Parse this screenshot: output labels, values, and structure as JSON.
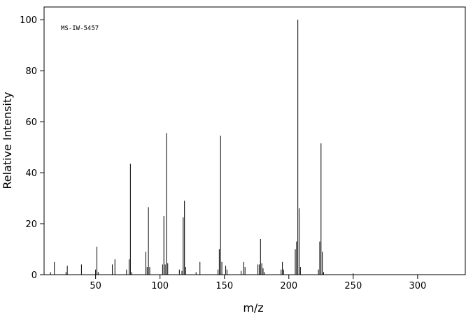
{
  "chart_data": {
    "type": "stem",
    "annotation": "MS-IW-5457",
    "x_label": "m/z",
    "y_label": "Relative Intensity",
    "color": "#000000",
    "xlim": [
      10,
      337
    ],
    "ylim": [
      0,
      105
    ],
    "xticks": [
      50,
      100,
      150,
      200,
      250,
      300
    ],
    "yticks": [
      0,
      20,
      40,
      60,
      80,
      100
    ],
    "x": [
      15,
      18,
      27,
      28,
      39,
      50,
      51,
      52,
      63,
      65,
      74,
      76,
      77,
      78,
      89,
      90,
      91,
      92,
      102,
      103,
      104,
      105,
      106,
      115,
      117,
      118,
      119,
      120,
      128,
      131,
      145,
      146,
      147,
      148,
      151,
      152,
      163,
      165,
      166,
      176,
      177,
      178,
      179,
      180,
      181,
      194,
      195,
      196,
      205,
      206,
      207,
      208,
      209,
      223,
      224,
      225,
      226,
      227,
      250
    ],
    "values": [
      1,
      5,
      1,
      3.5,
      4,
      2,
      11,
      1,
      4,
      6,
      2,
      6,
      43.5,
      1,
      9,
      3,
      26.5,
      3,
      4,
      23,
      4,
      55.5,
      4.5,
      2,
      1.5,
      22.5,
      29,
      3,
      1,
      5,
      2,
      10,
      54.5,
      5,
      3.5,
      2,
      1.5,
      5,
      3,
      4,
      4,
      14,
      4.5,
      2.5,
      1,
      2,
      5,
      2,
      10,
      13,
      100,
      26,
      3,
      2,
      13,
      51.5,
      9,
      1,
      0.5
    ]
  }
}
